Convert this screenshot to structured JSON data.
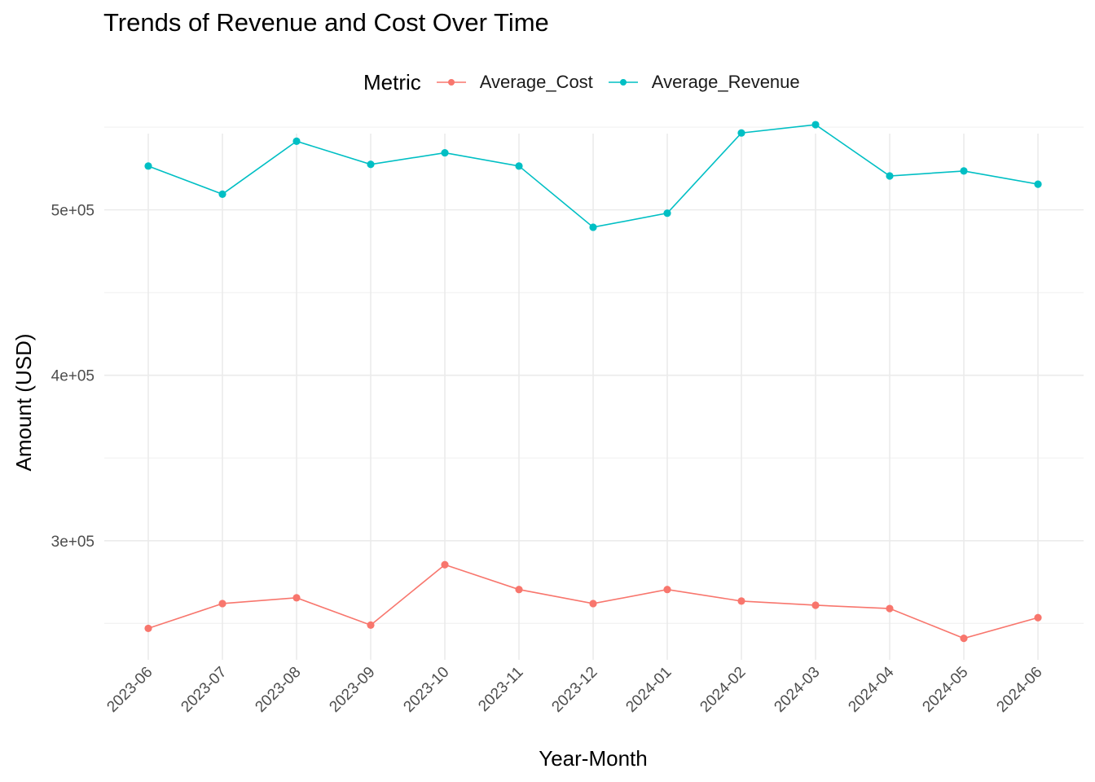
{
  "chart_data": {
    "type": "line",
    "title": "Trends of Revenue and Cost Over Time",
    "xlabel": "Year-Month",
    "ylabel": "Amount (USD)",
    "legend_title": "Metric",
    "legend_position": "top",
    "grid": true,
    "categories": [
      "2023-06",
      "2023-07",
      "2023-08",
      "2023-09",
      "2023-10",
      "2023-11",
      "2023-12",
      "2024-01",
      "2024-02",
      "2024-03",
      "2024-04",
      "2024-05",
      "2024-06"
    ],
    "yticks": [
      300000,
      400000,
      500000
    ],
    "ytick_labels": [
      "3e+05",
      "4e+05",
      "5e+05"
    ],
    "ylim": [
      228000,
      553000
    ],
    "series": [
      {
        "name": "Average_Cost",
        "color": "#F8766D",
        "values": [
          247000,
          262000,
          265500,
          249000,
          285500,
          270500,
          262000,
          270500,
          263500,
          261000,
          259000,
          241000,
          253500
        ]
      },
      {
        "name": "Average_Revenue",
        "color": "#00BFC4",
        "values": [
          526500,
          509500,
          541500,
          527500,
          534500,
          526500,
          489500,
          498000,
          546500,
          551500,
          520500,
          523500,
          515500
        ]
      }
    ]
  }
}
